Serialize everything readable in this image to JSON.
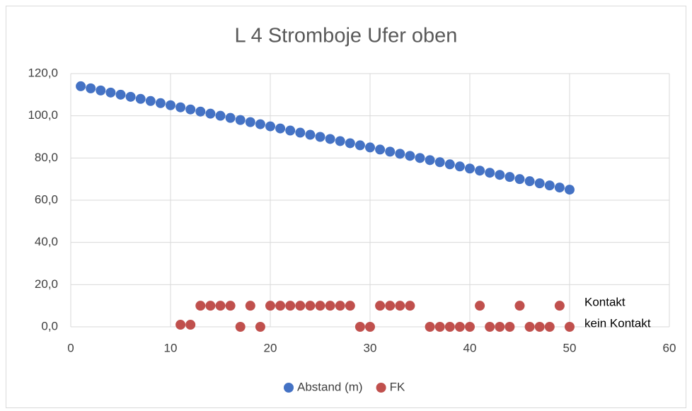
{
  "chart_data": {
    "type": "scatter",
    "title": "L 4 Stromboje Ufer oben",
    "series": [
      {
        "name": "Abstand (m)",
        "color": "#4472c4",
        "x": [
          1,
          2,
          3,
          4,
          5,
          6,
          7,
          8,
          9,
          10,
          11,
          12,
          13,
          14,
          15,
          16,
          17,
          18,
          19,
          20,
          21,
          22,
          23,
          24,
          25,
          26,
          27,
          28,
          29,
          30,
          31,
          32,
          33,
          34,
          35,
          36,
          37,
          38,
          39,
          40,
          41,
          42,
          43,
          44,
          45,
          46,
          47,
          48,
          49,
          50
        ],
        "values": [
          114,
          113,
          112,
          111,
          110,
          109,
          108,
          107,
          106,
          105,
          104,
          103,
          102,
          101,
          100,
          99,
          98,
          97,
          96,
          95,
          94,
          93,
          92,
          91,
          90,
          89,
          88,
          87,
          86,
          85,
          84,
          83,
          82,
          81,
          80,
          79,
          78,
          77,
          76,
          75,
          74,
          73,
          72,
          71,
          70,
          69,
          68,
          67,
          66,
          65
        ]
      },
      {
        "name": "FK",
        "color": "#c0504d",
        "x": [
          11,
          12,
          13,
          14,
          15,
          16,
          17,
          18,
          19,
          20,
          21,
          22,
          23,
          24,
          25,
          26,
          27,
          28,
          29,
          30,
          31,
          32,
          33,
          34,
          36,
          37,
          38,
          39,
          40,
          41,
          42,
          43,
          44,
          45,
          46,
          47,
          48,
          49,
          50
        ],
        "values": [
          1,
          1,
          10,
          10,
          10,
          10,
          0,
          10,
          0,
          10,
          10,
          10,
          10,
          10,
          10,
          10,
          10,
          10,
          0,
          0,
          10,
          10,
          10,
          10,
          0,
          0,
          0,
          0,
          0,
          10,
          0,
          0,
          0,
          10,
          0,
          0,
          0,
          10,
          0
        ]
      }
    ],
    "annotations": [
      {
        "text": "Kontakt",
        "y": 10
      },
      {
        "text": "kein Kontakt",
        "y": 0
      }
    ],
    "xlim": [
      0,
      60
    ],
    "xticks": [
      0,
      10,
      20,
      30,
      40,
      50,
      60
    ],
    "ylim": [
      0,
      120
    ],
    "yticks": [
      {
        "value": 0,
        "label": "0,0"
      },
      {
        "value": 20,
        "label": "20,0"
      },
      {
        "value": 40,
        "label": "40,0"
      },
      {
        "value": 60,
        "label": "60,0"
      },
      {
        "value": 80,
        "label": "80,0"
      },
      {
        "value": 100,
        "label": "100,0"
      },
      {
        "value": 120,
        "label": "120,0"
      }
    ],
    "grid": true,
    "legend": "bottom"
  }
}
